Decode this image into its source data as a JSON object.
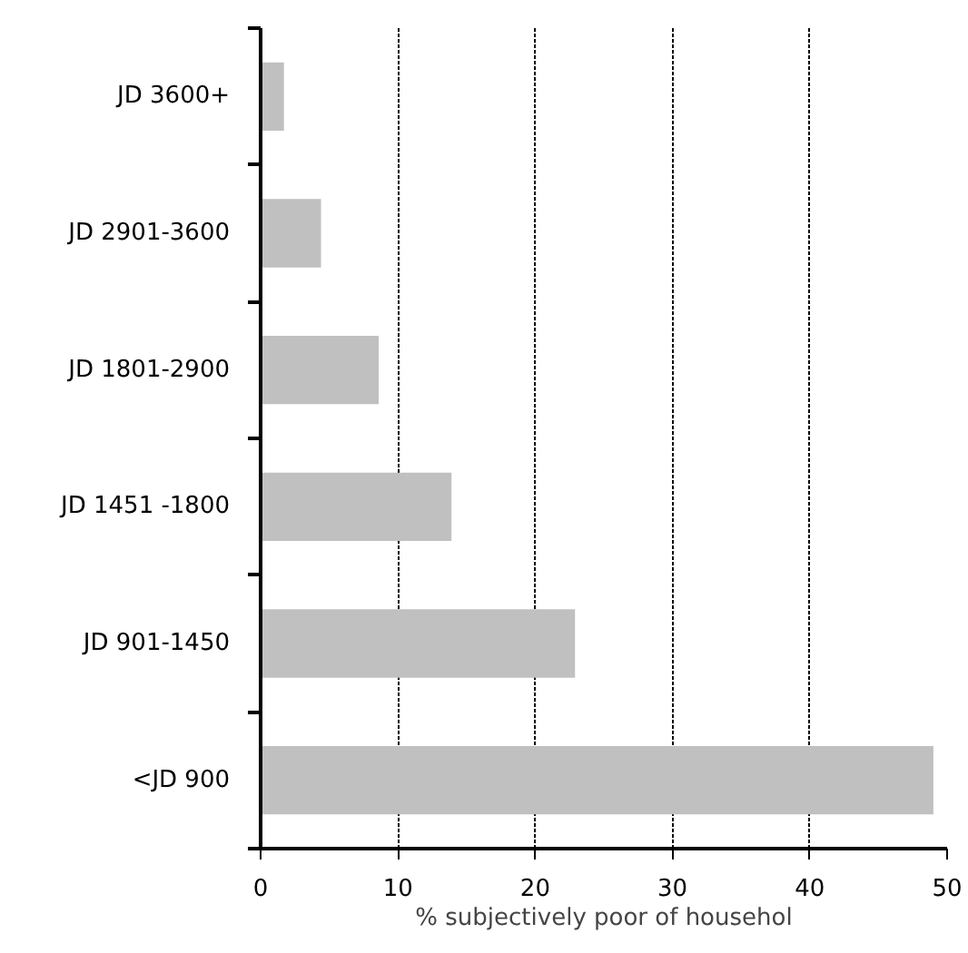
{
  "chart_data": {
    "type": "bar",
    "orientation": "horizontal",
    "xlabel": "% subjectively poor of househol",
    "categories": [
      "JD 3600+",
      "JD 2901-3600",
      "JD 1801-2900",
      "JD 1451 -1800",
      "JD 901-1450",
      "<JD 900"
    ],
    "values": [
      1.7,
      4.4,
      8.6,
      13.9,
      22.9,
      49.0
    ],
    "color": "#c0c0c0",
    "xlim": [
      0,
      50
    ],
    "xticks": [
      0,
      10,
      20,
      30,
      40,
      50
    ],
    "grid": "x"
  }
}
